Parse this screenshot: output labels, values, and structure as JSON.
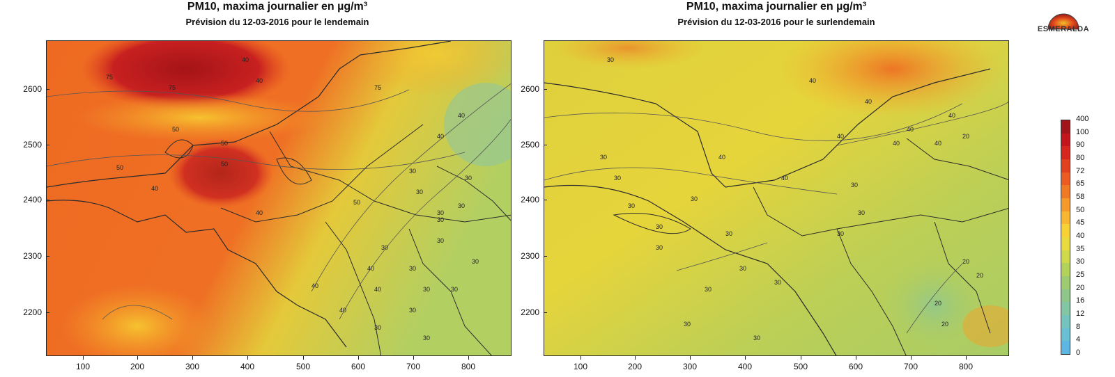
{
  "left": {
    "title": "PM10, maxima journalier en µg/m³",
    "subtitle": "Prévision du 12-03-2016 pour le lendemain",
    "contour_labels": [
      "75",
      "75",
      "50",
      "50",
      "40",
      "40",
      "50",
      "50",
      "40",
      "40",
      "40",
      "40",
      "30",
      "30",
      "30",
      "30",
      "30",
      "40",
      "40",
      "50",
      "75",
      "40",
      "40",
      "30",
      "30",
      "30",
      "30",
      "30",
      "30",
      "30",
      "30",
      "30",
      "30"
    ]
  },
  "right": {
    "title": "PM10, maxima journalier en µg/m³",
    "subtitle": "Prévision du 12-03-2016 pour le surlendemain",
    "contour_labels": [
      "30",
      "30",
      "30",
      "30",
      "30",
      "30",
      "30",
      "40",
      "40",
      "40",
      "40",
      "40",
      "30",
      "30",
      "30",
      "30",
      "30",
      "30",
      "40",
      "40",
      "40",
      "40",
      "30",
      "20",
      "20",
      "20",
      "20",
      "20",
      "30",
      "30"
    ]
  },
  "y_ticks": [
    "2600",
    "2500",
    "2400",
    "2300",
    "2200"
  ],
  "x_ticks": [
    "100",
    "200",
    "300",
    "400",
    "500",
    "600",
    "700",
    "800"
  ],
  "colorbar": {
    "labels": [
      "400",
      "100",
      "90",
      "80",
      "72",
      "65",
      "58",
      "50",
      "45",
      "40",
      "35",
      "30",
      "25",
      "20",
      "16",
      "12",
      "8",
      "4",
      "0"
    ],
    "colors": [
      "#a0141a",
      "#c3161c",
      "#d7261e",
      "#e2411f",
      "#ec5b22",
      "#f07a24",
      "#f59a2a",
      "#f8b730",
      "#f8d135",
      "#e9db3d",
      "#d0d94a",
      "#b3d25a",
      "#9ecb72",
      "#8fc689",
      "#82c6a4",
      "#74c4bd",
      "#69bfd3",
      "#5db7e2"
    ]
  },
  "logo": {
    "text": "ESMERALDA"
  }
}
